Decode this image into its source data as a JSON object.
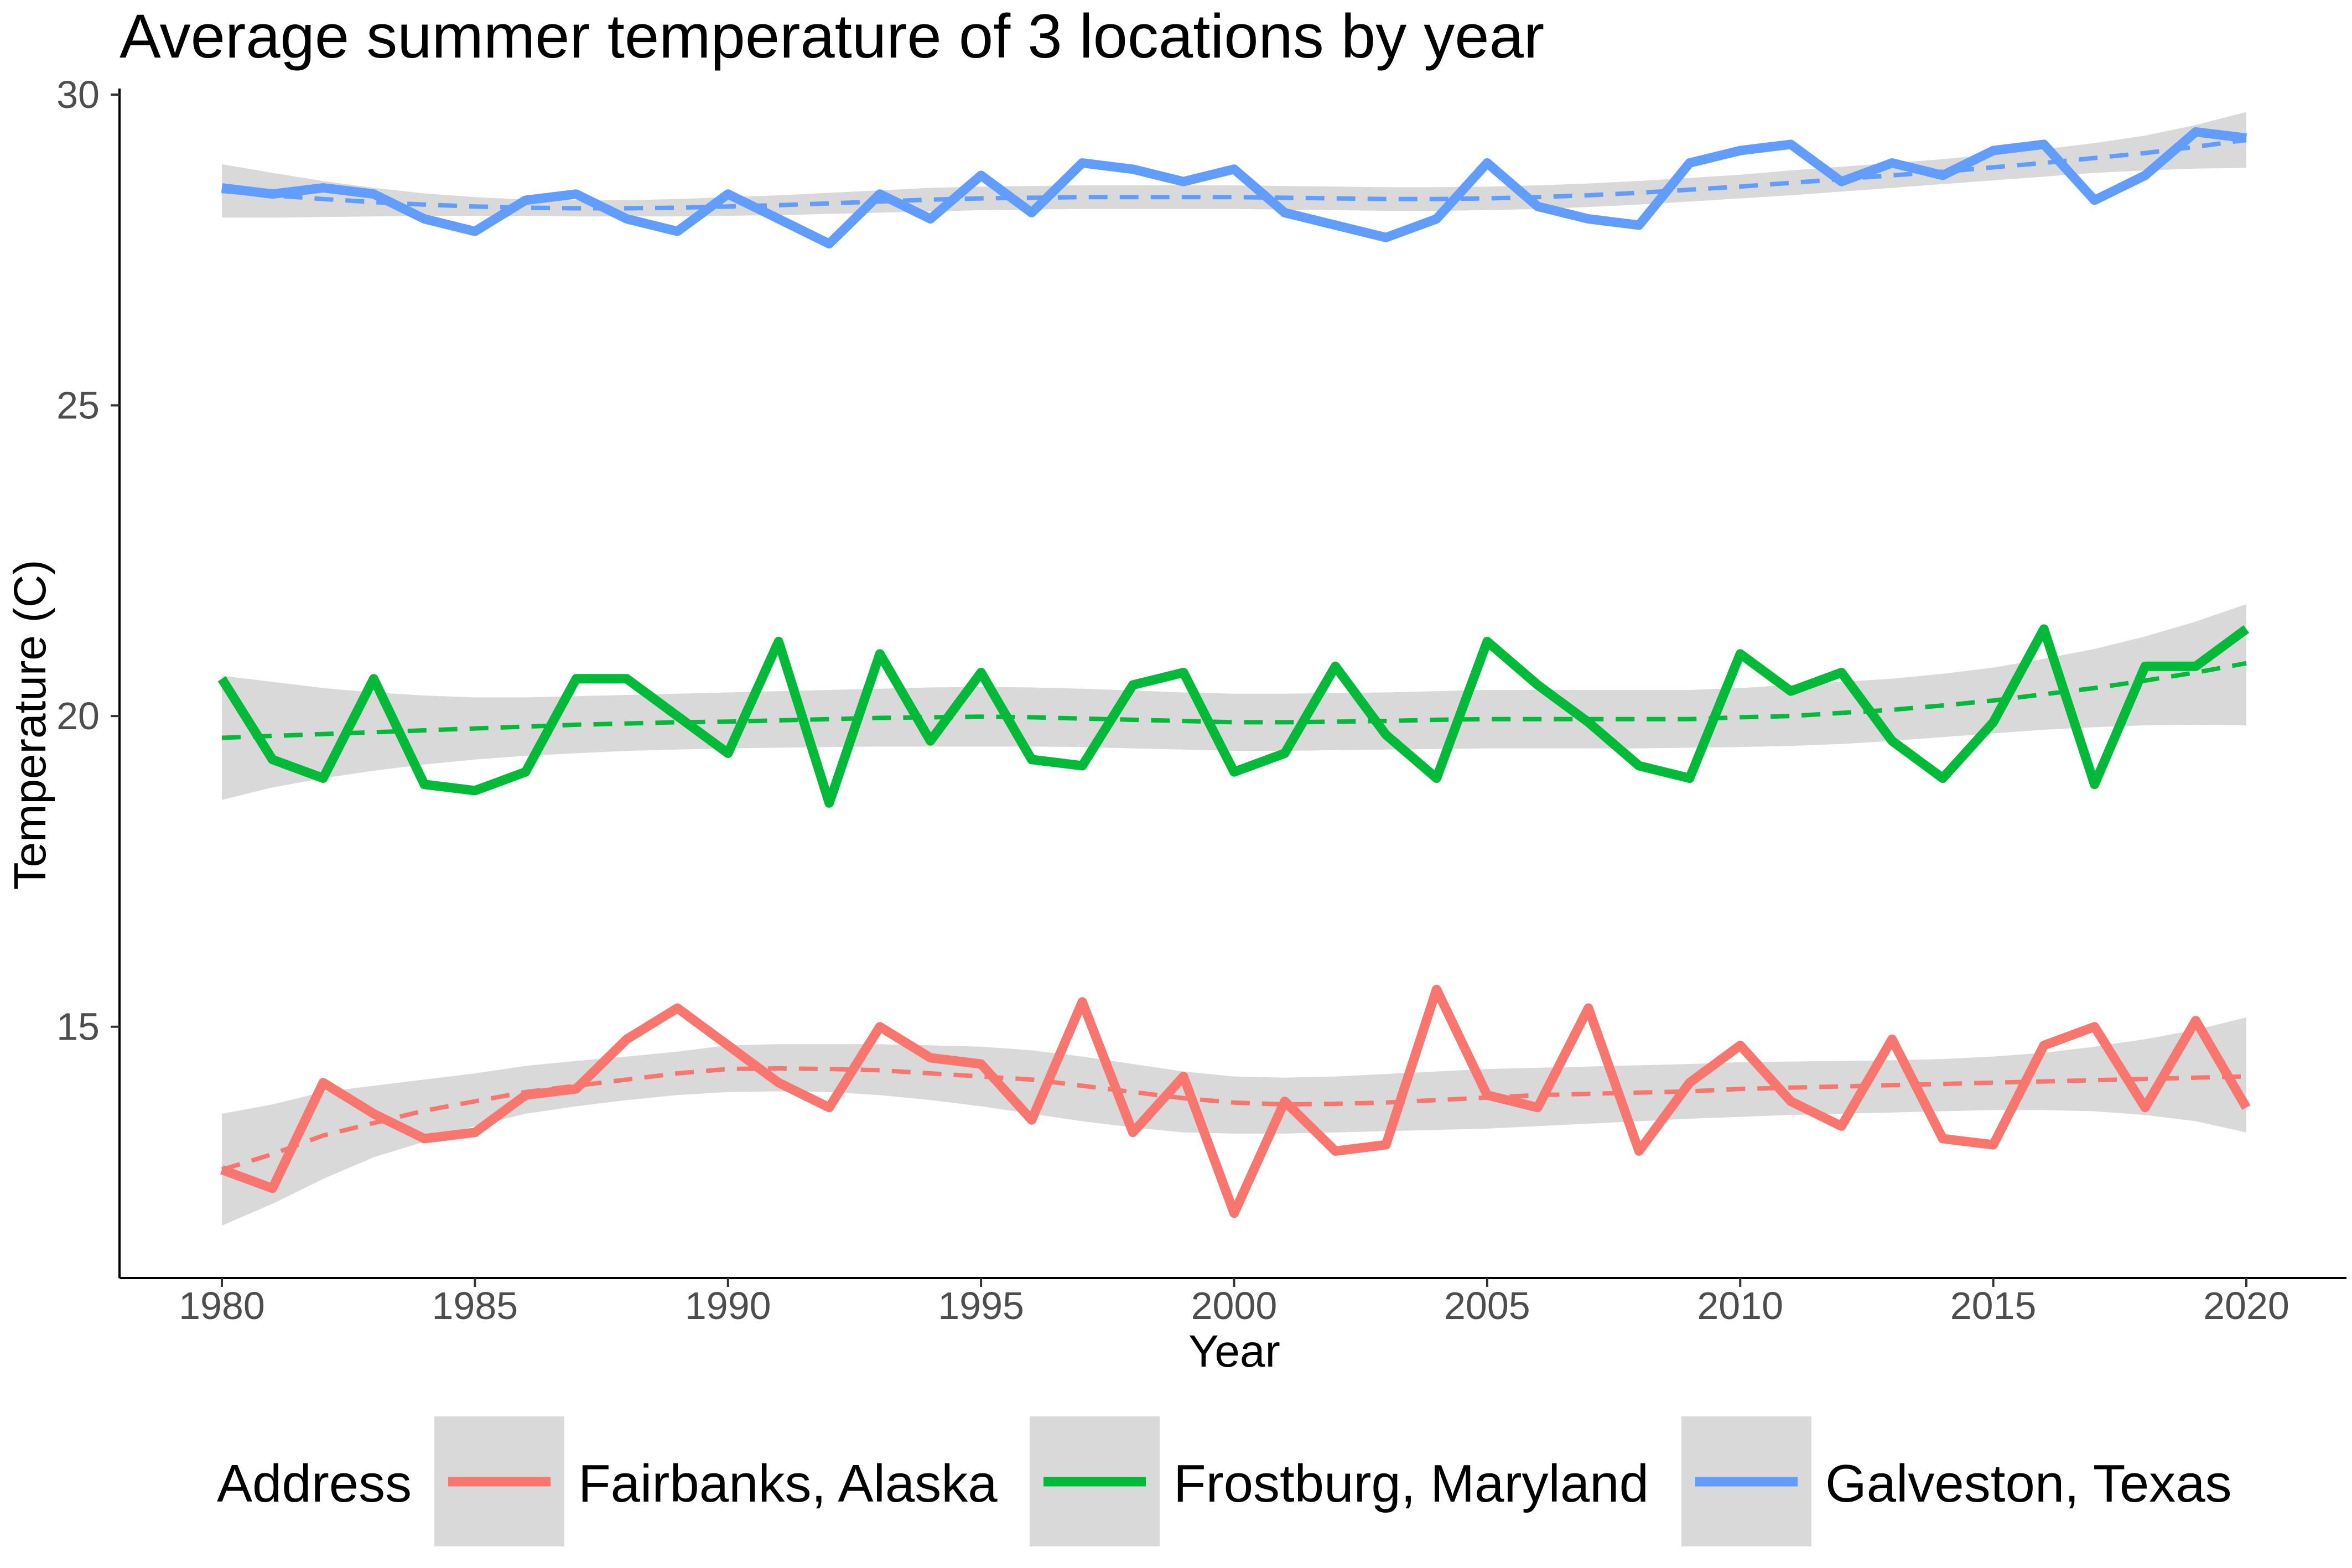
{
  "chart_data": {
    "type": "line",
    "title": "Average summer temperature of 3 locations by year",
    "xlabel": "Year",
    "ylabel": "Temperature (C)",
    "xlim": [
      1978,
      2020
    ],
    "ylim": [
      10.9,
      30.3
    ],
    "x_ticks": [
      1980,
      1985,
      1990,
      1995,
      2000,
      2005,
      2010,
      2015,
      2020
    ],
    "y_ticks": [
      15,
      20,
      25,
      30
    ],
    "grid": false,
    "legend": {
      "title": "Address",
      "placement": "bottom"
    },
    "x": [
      1980,
      1981,
      1982,
      1983,
      1984,
      1985,
      1986,
      1987,
      1988,
      1989,
      1990,
      1991,
      1992,
      1993,
      1994,
      1995,
      1996,
      1997,
      1998,
      1999,
      2000,
      2001,
      2002,
      2003,
      2004,
      2005,
      2006,
      2007,
      2008,
      2009,
      2010,
      2011,
      2012,
      2013,
      2014,
      2015,
      2016,
      2017,
      2018,
      2019,
      2020
    ],
    "series": [
      {
        "name": "Fairbanks, Alaska",
        "color": "#f8766d",
        "values": [
          12.7,
          12.4,
          14.1,
          13.6,
          13.2,
          13.3,
          13.9,
          14.0,
          14.8,
          15.3,
          14.7,
          14.1,
          13.7,
          15.0,
          14.5,
          14.4,
          13.5,
          15.4,
          13.3,
          14.2,
          12.0,
          13.8,
          13.0,
          13.1,
          15.6,
          13.9,
          13.7,
          15.3,
          13.0,
          14.1,
          14.7,
          13.8,
          13.4,
          14.8,
          13.2,
          13.1,
          14.7,
          15.0,
          13.7,
          15.1,
          13.7
        ],
        "trend": [
          12.7,
          12.95,
          13.25,
          13.45,
          13.65,
          13.8,
          13.95,
          14.05,
          14.15,
          14.25,
          14.32,
          14.33,
          14.32,
          14.3,
          14.25,
          14.2,
          14.15,
          14.05,
          13.95,
          13.85,
          13.78,
          13.75,
          13.76,
          13.78,
          13.82,
          13.86,
          13.9,
          13.92,
          13.94,
          13.96,
          14.0,
          14.02,
          14.04,
          14.06,
          14.08,
          14.1,
          14.12,
          14.14,
          14.16,
          14.18,
          14.2
        ],
        "ci_lower": [
          11.8,
          12.15,
          12.55,
          12.9,
          13.15,
          13.4,
          13.6,
          13.72,
          13.82,
          13.9,
          13.95,
          13.96,
          13.95,
          13.9,
          13.82,
          13.72,
          13.6,
          13.48,
          13.38,
          13.3,
          13.28,
          13.28,
          13.3,
          13.32,
          13.34,
          13.36,
          13.4,
          13.44,
          13.48,
          13.52,
          13.55,
          13.58,
          13.6,
          13.62,
          13.64,
          13.66,
          13.66,
          13.64,
          13.58,
          13.48,
          13.3
        ],
        "ci_upper": [
          13.6,
          13.75,
          13.95,
          14.05,
          14.15,
          14.25,
          14.37,
          14.45,
          14.52,
          14.6,
          14.7,
          14.72,
          14.72,
          14.72,
          14.7,
          14.68,
          14.62,
          14.52,
          14.4,
          14.28,
          14.2,
          14.18,
          14.2,
          14.24,
          14.28,
          14.32,
          14.34,
          14.36,
          14.38,
          14.4,
          14.43,
          14.44,
          14.45,
          14.46,
          14.48,
          14.52,
          14.58,
          14.68,
          14.8,
          14.95,
          15.15
        ]
      },
      {
        "name": "Frostburg, Maryland",
        "color": "#00ba38",
        "values": [
          20.6,
          19.3,
          19.0,
          20.6,
          18.9,
          18.8,
          19.1,
          20.6,
          20.6,
          20.0,
          19.4,
          21.2,
          18.6,
          21.0,
          19.6,
          20.7,
          19.3,
          19.2,
          20.5,
          20.7,
          19.1,
          19.4,
          20.8,
          19.7,
          19.0,
          21.2,
          20.5,
          19.9,
          19.2,
          19.0,
          21.0,
          20.4,
          20.7,
          19.6,
          19.0,
          19.9,
          21.4,
          18.9,
          20.8,
          20.8,
          21.4
        ],
        "trend": [
          19.65,
          19.68,
          19.71,
          19.74,
          19.77,
          19.8,
          19.83,
          19.86,
          19.88,
          19.9,
          19.91,
          19.93,
          19.95,
          19.97,
          19.98,
          19.99,
          19.98,
          19.96,
          19.94,
          19.92,
          19.9,
          19.9,
          19.91,
          19.92,
          19.94,
          19.95,
          19.95,
          19.95,
          19.95,
          19.95,
          19.98,
          20.0,
          20.05,
          20.1,
          20.17,
          20.25,
          20.35,
          20.45,
          20.57,
          20.7,
          20.85
        ],
        "ci_lower": [
          18.65,
          18.85,
          19.0,
          19.12,
          19.22,
          19.3,
          19.36,
          19.4,
          19.44,
          19.46,
          19.48,
          19.49,
          19.5,
          19.51,
          19.51,
          19.51,
          19.51,
          19.5,
          19.48,
          19.46,
          19.44,
          19.44,
          19.45,
          19.46,
          19.47,
          19.48,
          19.48,
          19.48,
          19.48,
          19.49,
          19.5,
          19.52,
          19.55,
          19.6,
          19.66,
          19.72,
          19.78,
          19.82,
          19.85,
          19.86,
          19.85
        ],
        "ci_upper": [
          20.65,
          20.55,
          20.45,
          20.38,
          20.33,
          20.3,
          20.3,
          20.32,
          20.34,
          20.36,
          20.38,
          20.4,
          20.42,
          20.44,
          20.46,
          20.47,
          20.46,
          20.44,
          20.41,
          20.38,
          20.36,
          20.36,
          20.37,
          20.38,
          20.4,
          20.42,
          20.42,
          20.42,
          20.42,
          20.42,
          20.45,
          20.5,
          20.55,
          20.6,
          20.68,
          20.78,
          20.92,
          21.08,
          21.28,
          21.52,
          21.8
        ]
      },
      {
        "name": "Galveston, Texas",
        "color": "#619cff",
        "values": [
          28.5,
          28.4,
          28.5,
          28.4,
          28.0,
          27.8,
          28.3,
          28.4,
          28.0,
          27.8,
          28.4,
          28.0,
          27.6,
          28.4,
          28.0,
          28.7,
          28.1,
          28.9,
          28.8,
          28.6,
          28.8,
          28.1,
          27.9,
          27.7,
          28.0,
          28.9,
          28.2,
          28.0,
          27.9,
          28.9,
          29.1,
          29.2,
          28.6,
          28.9,
          28.7,
          29.1,
          29.2,
          28.3,
          28.7,
          29.4,
          29.3
        ],
        "trend": [
          28.45,
          28.38,
          28.32,
          28.27,
          28.23,
          28.2,
          28.18,
          28.17,
          28.17,
          28.18,
          28.2,
          28.22,
          28.25,
          28.28,
          28.31,
          28.33,
          28.34,
          28.35,
          28.35,
          28.35,
          28.35,
          28.34,
          28.33,
          28.32,
          28.32,
          28.33,
          28.35,
          28.38,
          28.42,
          28.47,
          28.52,
          28.58,
          28.64,
          28.7,
          28.76,
          28.83,
          28.9,
          28.98,
          29.06,
          29.16,
          29.27
        ],
        "ci_lower": [
          28.02,
          28.02,
          28.03,
          28.04,
          28.05,
          28.05,
          28.05,
          28.04,
          28.04,
          28.04,
          28.05,
          28.06,
          28.08,
          28.1,
          28.12,
          28.14,
          28.15,
          28.16,
          28.16,
          28.16,
          28.16,
          28.15,
          28.14,
          28.13,
          28.13,
          28.14,
          28.16,
          28.19,
          28.23,
          28.28,
          28.33,
          28.38,
          28.44,
          28.5,
          28.56,
          28.62,
          28.68,
          28.74,
          28.78,
          28.81,
          28.82
        ],
        "ci_upper": [
          28.88,
          28.74,
          28.61,
          28.5,
          28.41,
          28.35,
          28.31,
          28.3,
          28.3,
          28.32,
          28.35,
          28.38,
          28.42,
          28.46,
          28.5,
          28.52,
          28.53,
          28.54,
          28.54,
          28.54,
          28.54,
          28.53,
          28.52,
          28.51,
          28.51,
          28.52,
          28.54,
          28.57,
          28.61,
          28.66,
          28.71,
          28.78,
          28.84,
          28.9,
          28.96,
          29.04,
          29.12,
          29.22,
          29.34,
          29.51,
          29.72
        ]
      }
    ]
  },
  "colors": {
    "ci_band": "#cccccc",
    "axis": "#000000",
    "tick_text": "#4d4d4d",
    "legend_key_bg": "#d9d9d9"
  }
}
